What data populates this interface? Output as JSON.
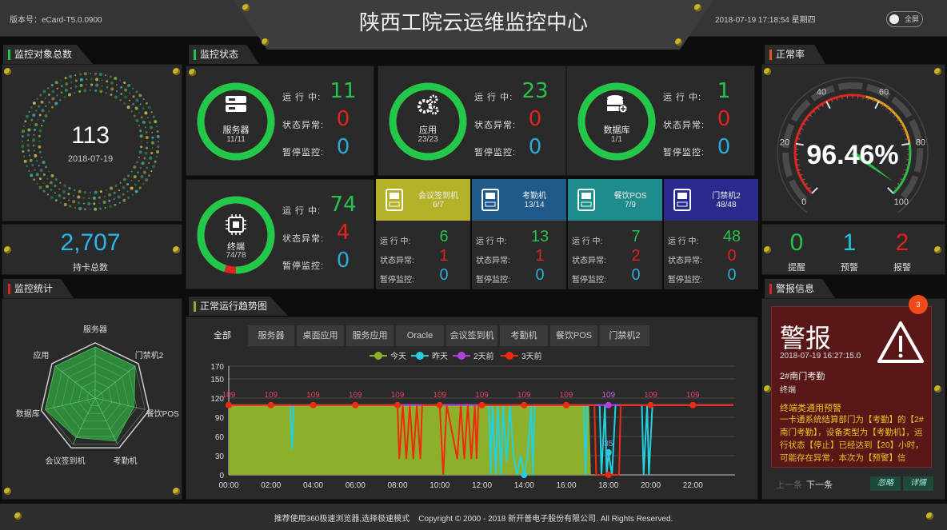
{
  "header": {
    "version": "版本号：eCard-T5.0.0900",
    "title": "陕西工院云运维监控中心",
    "datetime": "2018-07-19 17:18:54 星期四",
    "fullscreen_label": "全屏"
  },
  "colors": {
    "green": "#27c24c",
    "red": "#e0231f",
    "blue": "#2aa9d8",
    "yellow": "#b5b22a"
  },
  "left": {
    "objects_tab": "监控对象总数",
    "objects_total": "113",
    "objects_date": "2018-07-19",
    "cards_total": "2,707",
    "cards_label": "持卡总数",
    "stats_tab": "监控统计"
  },
  "status": {
    "tab": "监控状态",
    "labels": {
      "running": "运 行 中:",
      "abnormal": "状态异常:",
      "paused": "暂停监控:"
    },
    "big": [
      {
        "name": "服务器",
        "ratio": "11/11",
        "running": "11",
        "abnormal": "0",
        "paused": "0",
        "icon": "server-icon",
        "fraction": 1
      },
      {
        "name": "应用",
        "ratio": "23/23",
        "running": "23",
        "abnormal": "0",
        "paused": "0",
        "icon": "gears-icon",
        "fraction": 1
      },
      {
        "name": "数据库",
        "ratio": "1/1",
        "running": "1",
        "abnormal": "0",
        "paused": "0",
        "icon": "database-icon",
        "fraction": 1
      },
      {
        "name": "终端",
        "ratio": "74/78",
        "running": "74",
        "abnormal": "4",
        "paused": "0",
        "icon": "chip-icon",
        "fraction": 0.9487
      }
    ],
    "small": [
      {
        "name": "会议签到机",
        "ratio": "6/7",
        "running": "6",
        "abnormal": "1",
        "paused": "0",
        "color": "#b5b22a",
        "icon": "sign-in-terminal-icon"
      },
      {
        "name": "考勤机",
        "ratio": "13/14",
        "running": "13",
        "abnormal": "1",
        "paused": "0",
        "color": "#1f5a8a",
        "icon": "attendance-machine-icon"
      },
      {
        "name": "餐饮POS",
        "ratio": "7/9",
        "running": "7",
        "abnormal": "2",
        "paused": "0",
        "color": "#1e8c8c",
        "icon": "pos-icon"
      },
      {
        "name": "门禁机2",
        "ratio": "48/48",
        "running": "48",
        "abnormal": "0",
        "paused": "0",
        "color": "#2a2a8c",
        "icon": "access-control-icon"
      }
    ]
  },
  "rate": {
    "tab": "正常率",
    "value": 96.46,
    "value_label": "96.46%",
    "ticks": [
      "0",
      "20",
      "40",
      "60",
      "80",
      "100"
    ],
    "counts": [
      {
        "value": "0",
        "label": "提醒",
        "color": "#27c24c"
      },
      {
        "value": "1",
        "label": "预警",
        "color": "#22c4d8"
      },
      {
        "value": "2",
        "label": "报警",
        "color": "#e0231f"
      }
    ]
  },
  "alarm": {
    "tab": "警报信息",
    "badge": "3",
    "title": "警报",
    "time": "2018-07-19 16:27:15.0",
    "device": "2#南门考勤",
    "type": "终端",
    "heading": "终端类通用预警",
    "message": "一卡通系统结算部门为【考勤】的【2#南门考勤】，设备类型为【考勤机】，运行状态【停止】已经达到【20】小时，可能存在异常，本次为【预警】信",
    "prev": "上一条",
    "next": "下一条",
    "ignore": "忽略",
    "detail": "详情"
  },
  "trend": {
    "tab": "正常运行趋势图",
    "tabs": [
      "全部",
      "服务器",
      "桌面应用",
      "服务应用",
      "Oracle",
      "会议签到机",
      "考勤机",
      "餐饮POS",
      "门禁机2"
    ]
  },
  "footer": {
    "text": "推荐使用360极速浏览器,选择极速模式    Copyright © 2000 - 2018 新开普电子股份有限公司. All Rights Reserved."
  },
  "chart_data": [
    {
      "type": "radar",
      "axes": [
        "服务器",
        "门禁机2",
        "餐饮POS",
        "考勤机",
        "会议签到机",
        "数据库",
        "应用"
      ],
      "values": [
        100,
        100,
        77.8,
        92.9,
        85.7,
        100,
        100
      ],
      "max": 100
    },
    {
      "type": "gauge",
      "min": 0,
      "max": 100,
      "value": 96.46,
      "ticks": [
        0,
        20,
        40,
        60,
        80,
        100
      ],
      "bands": [
        {
          "to": 55,
          "color": "#e0231f"
        },
        {
          "to": 80,
          "color": "#e0a020"
        },
        {
          "to": 100,
          "color": "#27c24c"
        }
      ]
    },
    {
      "type": "line",
      "xlabel": "",
      "ylabel": "",
      "ylim": [
        0,
        170
      ],
      "y_ticks": [
        0,
        30,
        60,
        90,
        120,
        150,
        170
      ],
      "x_ticks": [
        "00:00",
        "02:00",
        "04:00",
        "06:00",
        "08:00",
        "10:00",
        "12:00",
        "14:00",
        "16:00",
        "18:00",
        "20:00",
        "22:00"
      ],
      "legend": "top-center",
      "grid": true,
      "series": [
        {
          "name": "今天",
          "color": "#8db02a",
          "area": true,
          "points": [
            [
              "00:00",
              109
            ],
            [
              "17:05",
              109
            ],
            [
              "17:10",
              0
            ],
            [
              "23:55",
              0
            ]
          ]
        },
        {
          "name": "昨天",
          "color": "#22d0e0",
          "points": [
            [
              "00:00",
              109
            ],
            [
              "02:55",
              109
            ],
            [
              "03:00",
              40
            ],
            [
              "03:05",
              109
            ],
            [
              "12:20",
              109
            ],
            [
              "12:25",
              0
            ],
            [
              "12:30",
              109
            ],
            [
              "12:40",
              0
            ],
            [
              "12:45",
              109
            ],
            [
              "12:55",
              0
            ],
            [
              "13:00",
              109
            ],
            [
              "13:10",
              20
            ],
            [
              "13:20",
              109
            ],
            [
              "13:30",
              30
            ],
            [
              "13:40",
              0
            ],
            [
              "13:50",
              30
            ],
            [
              "14:00",
              0
            ],
            [
              "14:10",
              30
            ],
            [
              "14:20",
              109
            ],
            [
              "14:25",
              0
            ],
            [
              "14:30",
              109
            ],
            [
              "16:50",
              109
            ],
            [
              "16:55",
              0
            ],
            [
              "17:00",
              109
            ],
            [
              "17:35",
              109
            ],
            [
              "17:40",
              0
            ],
            [
              "17:50",
              109
            ],
            [
              "17:55",
              0
            ],
            [
              "18:00",
              35
            ],
            [
              "18:10",
              0
            ],
            [
              "18:20",
              109
            ],
            [
              "19:35",
              109
            ],
            [
              "19:40",
              0
            ],
            [
              "19:50",
              109
            ],
            [
              "19:55",
              0
            ],
            [
              "20:05",
              109
            ],
            [
              "23:55",
              109
            ]
          ]
        },
        {
          "name": "2天前",
          "color": "#b040e0",
          "points": [
            [
              "07:30",
              109
            ],
            [
              "23:55",
              109
            ]
          ]
        },
        {
          "name": "3天前",
          "color": "#f02a10",
          "points": [
            [
              "00:00",
              109
            ],
            [
              "08:00",
              109
            ],
            [
              "08:05",
              25
            ],
            [
              "08:15",
              109
            ],
            [
              "08:25",
              25
            ],
            [
              "08:35",
              109
            ],
            [
              "08:45",
              25
            ],
            [
              "08:55",
              109
            ],
            [
              "09:05",
              25
            ],
            [
              "09:10",
              109
            ],
            [
              "10:00",
              109
            ],
            [
              "10:10",
              0
            ],
            [
              "10:20",
              109
            ],
            [
              "10:50",
              25
            ],
            [
              "11:00",
              109
            ],
            [
              "11:10",
              25
            ],
            [
              "11:20",
              109
            ],
            [
              "11:30",
              25
            ],
            [
              "11:40",
              109
            ],
            [
              "11:45",
              25
            ],
            [
              "11:50",
              109
            ],
            [
              "17:20",
              109
            ],
            [
              "17:25",
              0
            ],
            [
              "18:30",
              0
            ],
            [
              "18:35",
              109
            ],
            [
              "23:55",
              109
            ]
          ]
        }
      ],
      "markers": [
        {
          "series": "3天前",
          "x": "00:00",
          "y": 109,
          "label": "109"
        },
        {
          "series": "3天前",
          "x": "02:00",
          "y": 109,
          "label": "109"
        },
        {
          "series": "3天前",
          "x": "04:00",
          "y": 109,
          "label": "109"
        },
        {
          "series": "3天前",
          "x": "06:00",
          "y": 109,
          "label": "109"
        },
        {
          "series": "3天前",
          "x": "08:00",
          "y": 109,
          "label": "109"
        },
        {
          "series": "3天前",
          "x": "10:00",
          "y": 109,
          "label": "109"
        },
        {
          "series": "3天前",
          "x": "12:00",
          "y": 109,
          "label": "109"
        },
        {
          "series": "3天前",
          "x": "14:00",
          "y": 109,
          "label": "109"
        },
        {
          "series": "3天前",
          "x": "16:00",
          "y": 109,
          "label": "109"
        },
        {
          "series": "2天前",
          "x": "18:00",
          "y": 109,
          "label": "109"
        },
        {
          "series": "3天前",
          "x": "20:00",
          "y": 109,
          "label": "109"
        },
        {
          "series": "3天前",
          "x": "22:00",
          "y": 109,
          "label": "109"
        },
        {
          "series": "昨天",
          "x": "18:00",
          "y": 35,
          "label": "35"
        },
        {
          "series": "3天前",
          "x": "18:00",
          "y": 0,
          "label": ""
        },
        {
          "series": "昨天",
          "x": "14:00",
          "y": 0,
          "label": ""
        }
      ]
    }
  ]
}
